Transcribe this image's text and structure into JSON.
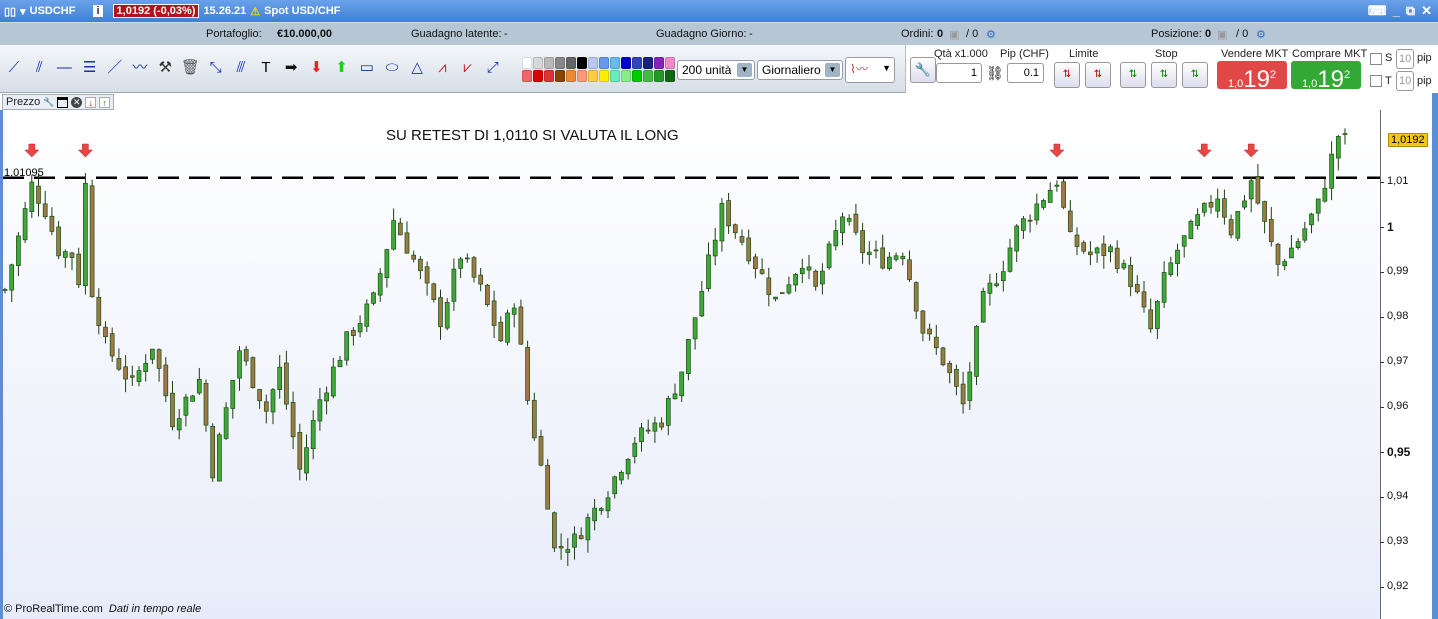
{
  "titlebar": {
    "symbol": "USDCHF",
    "price_change": "1,0192 (-0,03%)",
    "time": "15.26.21",
    "instrument": "Spot USD/CHF"
  },
  "infobar": {
    "portfolio_label": "Portafoglio:",
    "portfolio_value": "€10.000,00",
    "latent_label": "Guadagno latente:",
    "latent_value": "-",
    "day_label": "Guadagno Giorno:",
    "day_value": "-",
    "orders_label": "Ordini:",
    "orders_value": "0",
    "orders_total": "/ 0",
    "position_label": "Posizione:",
    "position_value": "0",
    "position_total": "/ 0"
  },
  "toolbar": {
    "units": "200 unità",
    "period": "Giornaliero",
    "tools": [
      "trend-line",
      "channel",
      "horizontal-line",
      "fibonacci",
      "segment",
      "regression",
      "settings-tools",
      "trash",
      "point",
      "parallel",
      "text",
      "arrow-right",
      "arrow-down-red",
      "arrow-up-green",
      "rectangle",
      "ellipse",
      "triangle",
      "pattern",
      "pattern-2",
      "measure"
    ],
    "colors": [
      "#ffffff",
      "#d8d8d8",
      "#b8b8b8",
      "#888888",
      "#666666",
      "#000000",
      "#b8c8f0",
      "#6699ee",
      "#66bbee",
      "#0000cc",
      "#3344bb",
      "#1a237e",
      "#8822bb",
      "#ee88cc",
      "#ee6666",
      "#dd0000",
      "#dd3333",
      "#884400",
      "#ee8833",
      "#ff9977",
      "#ffcc44",
      "#ffee00",
      "#66eebb",
      "#88ee88",
      "#00cc00",
      "#44bb44",
      "#229922",
      "#116611"
    ]
  },
  "trade": {
    "qty_label": "Qtà x1.000",
    "qty_value": "1",
    "pip_label": "Pip (CHF)",
    "pip_value": "0.1",
    "limit_label": "Limite",
    "stop_label": "Stop",
    "sell_label": "Vendere MKT",
    "buy_label": "Comprare MKT",
    "sell_prefix": "1,0",
    "sell_big": "19",
    "sell_sup": "2",
    "buy_prefix": "1,0",
    "buy_big": "19",
    "buy_sup": "2",
    "s_label": "S",
    "t_label": "T",
    "s_pips": "10",
    "t_pips": "10",
    "pip_unit": "pip",
    "sell_color": "#e04848",
    "buy_color": "#34a834"
  },
  "chart": {
    "panel_label": "Prezzo",
    "annotation": "SU RETEST DI 1,0110 SI VALUTA IL LONG",
    "level_label": "1,01095",
    "footer_brand": "© ProRealTime.com",
    "footer_status": "Dati in tempo reale"
  },
  "chart_data": {
    "type": "candlestick",
    "ylim": [
      0.915,
      1.024
    ],
    "y_ticks": [
      "1,01",
      "1",
      "0,99",
      "0,98",
      "0,97",
      "0,96",
      "0,95",
      "0,94",
      "0,93",
      "0,92"
    ],
    "y_tick_values": [
      1.01,
      1.0,
      0.99,
      0.98,
      0.97,
      0.96,
      0.95,
      0.94,
      0.93,
      0.92
    ],
    "last_price": 1.0192,
    "last_price_label": "1,0192",
    "horizontal_level": 1.01095,
    "signal_arrows_bar": [
      4,
      12,
      157,
      179,
      186
    ],
    "bar_count": 201,
    "price_path_bar": [
      0,
      4,
      6,
      8,
      10,
      11,
      12,
      13,
      15,
      19,
      22,
      25,
      29,
      31,
      35,
      39,
      41,
      44,
      47,
      51,
      55,
      58,
      61,
      65,
      68,
      71,
      74,
      76,
      78,
      81,
      82,
      85,
      87,
      90,
      94,
      98,
      101,
      104,
      107,
      110,
      115,
      119,
      121,
      125,
      128,
      131,
      134,
      137,
      140,
      143,
      146,
      149,
      151,
      154,
      157,
      159,
      162,
      165,
      168,
      171,
      173,
      175,
      178,
      181,
      183,
      186,
      188,
      190,
      193,
      196,
      199,
      200
    ],
    "price_path_close": [
      0.986,
      1.0093,
      1.0038,
      0.9949,
      0.9938,
      0.9882,
      1.0093,
      0.986,
      0.9738,
      0.9649,
      0.9738,
      0.9571,
      0.966,
      0.946,
      0.9727,
      0.9593,
      0.9682,
      0.946,
      0.9616,
      0.9749,
      0.9838,
      1.0016,
      0.9927,
      0.9793,
      0.9938,
      0.986,
      0.9749,
      0.9838,
      0.9616,
      0.9393,
      0.9282,
      0.9304,
      0.9349,
      0.9416,
      0.9527,
      0.9571,
      0.9682,
      0.986,
      1.0038,
      0.9971,
      0.9838,
      0.9927,
      0.986,
      1.0027,
      0.9949,
      0.9927,
      0.9949,
      0.9771,
      0.9704,
      0.9604,
      0.9838,
      0.9916,
      0.9993,
      1.0049,
      1.0104,
      0.9971,
      0.9938,
      0.9949,
      0.9882,
      0.9771,
      0.9882,
      0.9949,
      1.0016,
      1.0071,
      0.9993,
      1.0104,
      1.0004,
      0.9916,
      0.9971,
      1.0049,
      1.0204,
      1.0192
    ],
    "up_color": "#3fa83a",
    "down_color": "#9b7a45"
  }
}
